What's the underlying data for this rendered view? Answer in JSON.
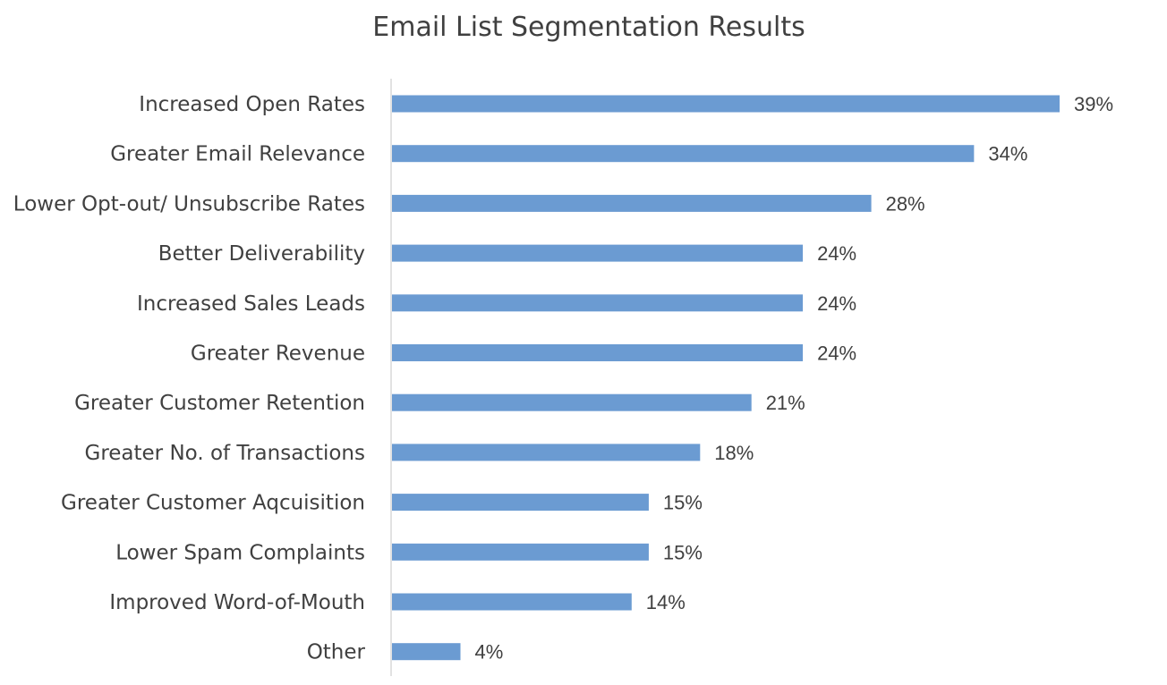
{
  "chart_data": {
    "type": "bar",
    "orientation": "horizontal",
    "title": "Email List Segmentation Results",
    "categories": [
      "Increased Open Rates",
      "Greater Email Relevance",
      "Lower Opt-out/ Unsubscribe Rates",
      "Better Deliverability",
      "Increased Sales Leads",
      "Greater Revenue",
      "Greater Customer Retention",
      "Greater No. of Transactions",
      "Greater Customer Aqcuisition",
      "Lower Spam Complaints",
      "Improved Word-of-Mouth",
      "Other"
    ],
    "values": [
      39,
      34,
      28,
      24,
      24,
      24,
      21,
      18,
      15,
      15,
      14,
      4
    ],
    "value_labels": [
      "39%",
      "34%",
      "28%",
      "24%",
      "24%",
      "24%",
      "21%",
      "18%",
      "15%",
      "15%",
      "14%",
      "4%"
    ],
    "unit": "%",
    "xlim": [
      0,
      39
    ],
    "grid": false,
    "legend": "none",
    "bar_color": "#6b9bd2",
    "axis_color": "#d9d9d9",
    "text_color": "#404040"
  }
}
